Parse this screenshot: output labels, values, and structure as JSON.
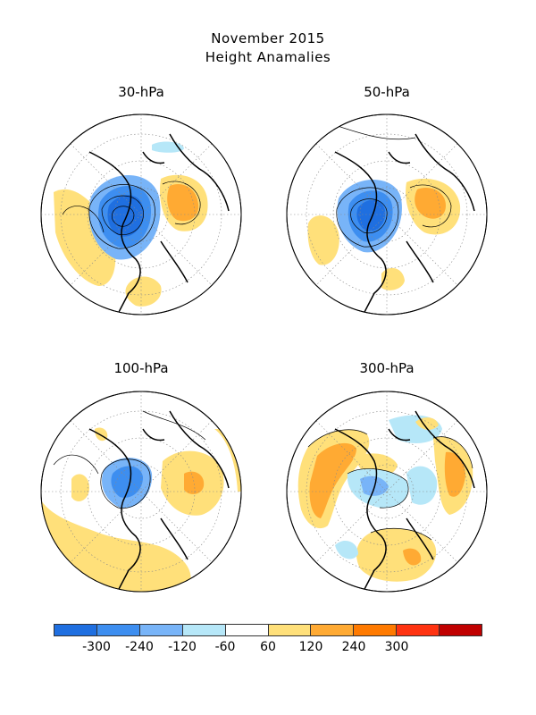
{
  "title_line1": "November 2015",
  "title_line2": "Height Anamalies",
  "panels": [
    {
      "label": "30-hPa"
    },
    {
      "label": "50-hPa"
    },
    {
      "label": "100-hPa"
    },
    {
      "label": "300-hPa"
    }
  ],
  "colorbar": {
    "colors": [
      "#1f6fe0",
      "#3d8ef0",
      "#78b4f8",
      "#b6e7f8",
      "#ffffff",
      "#ffe07a",
      "#ffaa33",
      "#ff7a00",
      "#ff3311",
      "#c00000"
    ],
    "tick_labels": [
      "-300",
      "-240",
      "-120",
      "-60",
      "60",
      "120",
      "240",
      "300"
    ]
  }
}
